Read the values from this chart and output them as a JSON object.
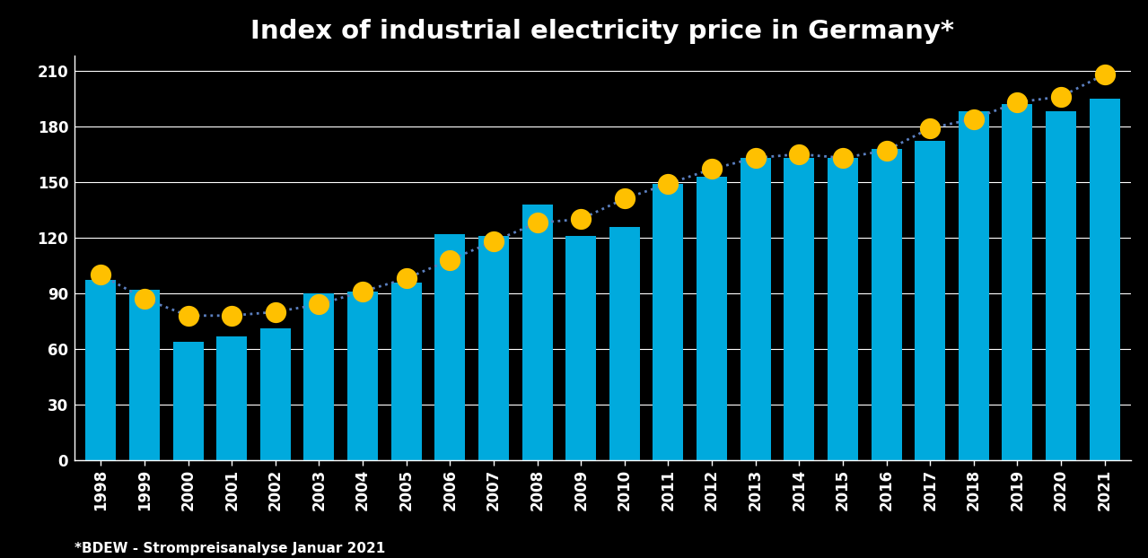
{
  "years": [
    1998,
    1999,
    2000,
    2001,
    2002,
    2003,
    2004,
    2005,
    2006,
    2007,
    2008,
    2009,
    2010,
    2011,
    2012,
    2013,
    2014,
    2015,
    2016,
    2017,
    2018,
    2019,
    2020,
    2021
  ],
  "bar_values": [
    97,
    92,
    64,
    67,
    71,
    90,
    91,
    96,
    122,
    121,
    138,
    121,
    126,
    149,
    153,
    163,
    163,
    163,
    168,
    172,
    188,
    192,
    188,
    195
  ],
  "dot_values": [
    100,
    87,
    78,
    78,
    80,
    84,
    91,
    98,
    108,
    118,
    128,
    130,
    141,
    149,
    157,
    163,
    165,
    163,
    167,
    179,
    184,
    193,
    196,
    208
  ],
  "bar_color": "#00AADD",
  "dot_color": "#FFC000",
  "line_color": "#5B7FBF",
  "title": "Index of industrial electricity price in Germany*",
  "yticks": [
    0,
    30,
    60,
    90,
    120,
    150,
    180,
    210
  ],
  "ylim": [
    0,
    218
  ],
  "background_color": "#000000",
  "text_color": "#FFFFFF",
  "footnote": "*BDEW - Strompreisanalyse Januar 2021",
  "title_fontsize": 21,
  "tick_fontsize": 12,
  "footnote_fontsize": 11
}
